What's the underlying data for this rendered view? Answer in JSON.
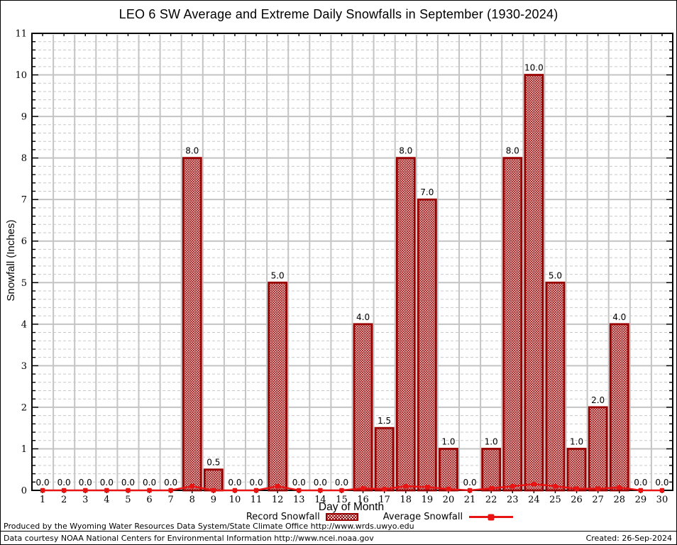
{
  "legend": {
    "record_label": "Record Snowfall",
    "average_label": "Average Snowfall"
  },
  "footer": {
    "line1": "Produced by the Wyoming Water Resources Data System/State Climate Office http://www.wrds.uwyo.edu",
    "line2": "Data courtesy NOAA National Centers for Environmental Information http://www.ncei.noaa.gov",
    "created": "Created: 26-Sep-2024"
  },
  "colors": {
    "bar_outline": "#990000",
    "bar_hatch": "#990000",
    "average_line": "#e81313",
    "grid_major": "#c4c4c4",
    "grid_minor": "#c9c9c9",
    "frame": "#000000",
    "label_text": "#000000"
  },
  "chart_data": {
    "type": "bar",
    "title": "LEO 6 SW Average and Extreme Daily Snowfalls in September (1930-2024)",
    "xlabel": "Day of Month",
    "ylabel": "Snowfall (Inches)",
    "ylim": [
      0,
      11
    ],
    "y_ticks": [
      0,
      1,
      2,
      3,
      4,
      5,
      6,
      7,
      8,
      9,
      10,
      11
    ],
    "grid": true,
    "legend_position": "bottom",
    "categories": [
      "1",
      "2",
      "3",
      "4",
      "5",
      "6",
      "7",
      "8",
      "9",
      "10",
      "11",
      "12",
      "13",
      "14",
      "15",
      "16",
      "17",
      "18",
      "19",
      "20",
      "21",
      "22",
      "23",
      "24",
      "25",
      "26",
      "27",
      "28",
      "29",
      "30"
    ],
    "series": [
      {
        "name": "Record Snowfall",
        "type": "bar",
        "values": [
          0,
          0,
          0,
          0,
          0,
          0,
          0,
          8,
          0.5,
          0,
          0,
          5,
          0,
          0,
          0,
          4,
          1.5,
          8,
          7,
          1,
          0,
          1,
          8,
          10,
          5,
          1,
          2,
          4,
          0,
          0
        ],
        "labels": [
          "0.0",
          "0.0",
          "0.0",
          "0.0",
          "0.0",
          "0.0",
          "0.0",
          "8.0",
          "0.5",
          "0.0",
          "0.0",
          "5.0",
          "0.0",
          "0.0",
          "0.0",
          "4.0",
          "1.5",
          "8.0",
          "7.0",
          "1.0",
          "0.0",
          "1.0",
          "8.0",
          "10.0",
          "5.0",
          "1.0",
          "2.0",
          "4.0",
          "0.0",
          "0.0"
        ]
      },
      {
        "name": "Average Snowfall",
        "type": "line",
        "values": [
          0,
          0,
          0,
          0,
          0,
          0,
          0,
          0.1,
          0,
          0,
          0,
          0.1,
          0,
          0,
          0,
          0.05,
          0.03,
          0.1,
          0.08,
          0.03,
          0,
          0.05,
          0.1,
          0.15,
          0.1,
          0.04,
          0.04,
          0.07,
          0,
          0
        ]
      }
    ]
  }
}
